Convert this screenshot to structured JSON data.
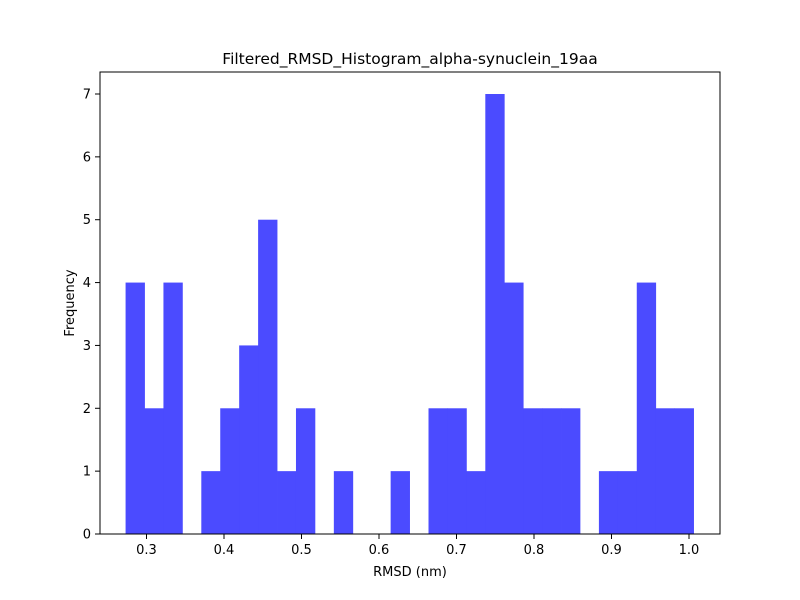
{
  "chart_data": {
    "type": "bar",
    "title": "Filtered_RMSD_Histogram_alpha-synuclein_19aa",
    "xlabel": "RMSD (nm)",
    "ylabel": "Frequency",
    "xlim": [
      0.24,
      1.04
    ],
    "ylim": [
      0,
      7.35
    ],
    "xticks": [
      0.3,
      0.4,
      0.5,
      0.6,
      0.7,
      0.8,
      0.9,
      1.0
    ],
    "xtick_labels": [
      "0.3",
      "0.4",
      "0.5",
      "0.6",
      "0.7",
      "0.8",
      "0.9",
      "1.0"
    ],
    "yticks": [
      0,
      1,
      2,
      3,
      4,
      5,
      6,
      7
    ],
    "ytick_labels": [
      "0",
      "1",
      "2",
      "3",
      "4",
      "5",
      "6",
      "7"
    ],
    "grid": false,
    "bin_start": 0.273,
    "bin_width": 0.02443,
    "values": [
      4,
      2,
      4,
      0,
      1,
      2,
      3,
      5,
      1,
      2,
      0,
      1,
      0,
      0,
      1,
      0,
      2,
      2,
      1,
      7,
      4,
      2,
      2,
      2,
      0,
      1,
      1,
      4,
      2,
      2
    ],
    "bar_color": "#4b4bff"
  }
}
